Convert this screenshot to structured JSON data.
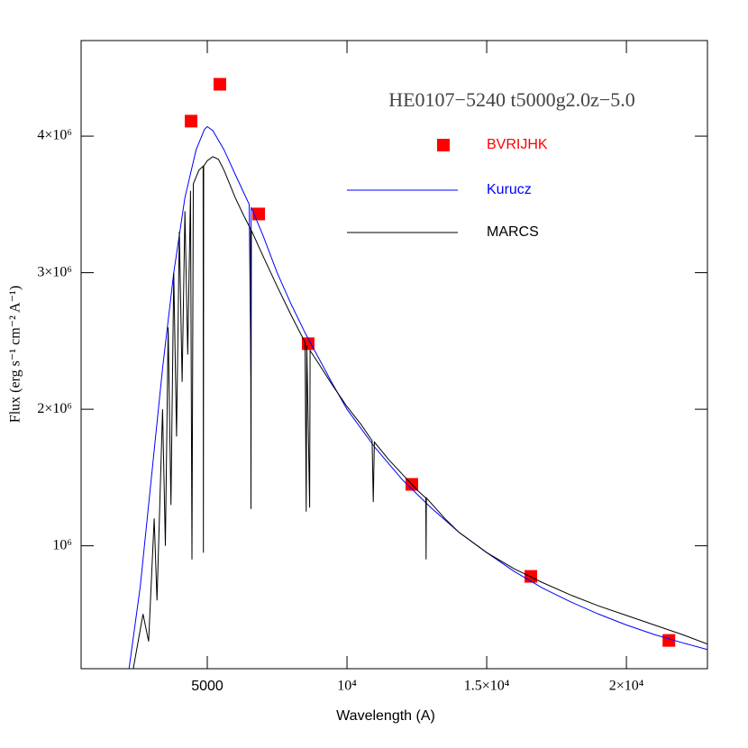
{
  "chart_data": {
    "type": "line",
    "annotation": "HE0107−5240  t5000g2.0z−5.0",
    "x_label": "Wavelength (A)",
    "y_label": "Flux (erg s⁻¹ cm⁻² A⁻¹)",
    "xlim": [
      484,
      22900
    ],
    "ylim": [
      100000,
      4700000
    ],
    "xticks": [
      5000,
      {
        "value": 10000,
        "label": "10⁴"
      },
      {
        "value": 15000,
        "label": "1.5×10⁴"
      },
      {
        "value": 20000,
        "label": "2×10⁴"
      }
    ],
    "yticks": [
      {
        "value": 1000000,
        "label": "10⁶"
      },
      {
        "value": 2000000,
        "label": "2×10⁶"
      },
      {
        "value": 3000000,
        "label": "3×10⁶"
      },
      {
        "value": 4000000,
        "label": "4×10⁶"
      }
    ],
    "series": [
      {
        "name": "BVRIJHK",
        "color": "#ff0000",
        "marker": "square",
        "x": [
          4420,
          5450,
          6840,
          8610,
          12320,
          16580,
          21520
        ],
        "values": [
          4110000,
          4380000,
          3430000,
          2480000,
          1450000,
          776000,
          307000
        ]
      },
      {
        "name": "Kurucz",
        "color": "#0000ff",
        "x": [
          2200,
          2600,
          3000,
          3400,
          3800,
          4200,
          4600,
          4900,
          5000,
          5200,
          5600,
          6000,
          6500,
          6560,
          6570,
          7000,
          7500,
          8000,
          8500,
          9000,
          9500,
          10000,
          11000,
          12000,
          13000,
          14000,
          15000,
          16000,
          17000,
          18000,
          19000,
          20000,
          21000,
          22000,
          22900
        ],
        "values": [
          100000,
          700000,
          1500000,
          2300000,
          3000000,
          3550000,
          3900000,
          4050000,
          4070000,
          4040000,
          3900000,
          3720000,
          3500000,
          2250000,
          3480000,
          3270000,
          3000000,
          2770000,
          2560000,
          2370000,
          2180000,
          2000000,
          1720000,
          1480000,
          1280000,
          1100000,
          950000,
          810000,
          690000,
          590000,
          500000,
          420000,
          350000,
          290000,
          240000
        ]
      },
      {
        "name": "MARCS",
        "color": "#000000",
        "x": [
          2350,
          2700,
          2900,
          3100,
          3200,
          3400,
          3500,
          3600,
          3700,
          3800,
          3900,
          4000,
          4100,
          4200,
          4300,
          4400,
          4450,
          4500,
          4700,
          4850,
          4861,
          4870,
          5000,
          5200,
          5400,
          5600,
          5800,
          6000,
          6300,
          6550,
          6563,
          6576,
          7000,
          7500,
          8000,
          8500,
          8542,
          8560,
          8662,
          8680,
          9000,
          9500,
          10000,
          10500,
          10900,
          10940,
          10980,
          11500,
          12000,
          12500,
          12820,
          12830,
          12840,
          13500,
          14000,
          15000,
          16000,
          17000,
          18000,
          19000,
          20000,
          21000,
          22000,
          22900
        ],
        "values": [
          100000,
          500000,
          300000,
          1200000,
          600000,
          2000000,
          1000000,
          2600000,
          1300000,
          3000000,
          1800000,
          3300000,
          2200000,
          3450000,
          2400000,
          3600000,
          900000,
          3650000,
          3750000,
          3780000,
          950000,
          3780000,
          3820000,
          3850000,
          3830000,
          3750000,
          3650000,
          3550000,
          3420000,
          3320000,
          1270000,
          3310000,
          3120000,
          2900000,
          2690000,
          2490000,
          1250000,
          2470000,
          1280000,
          2430000,
          2330000,
          2170000,
          2020000,
          1890000,
          1770000,
          1320000,
          1760000,
          1630000,
          1520000,
          1410000,
          1350000,
          900000,
          1350000,
          1200000,
          1100000,
          950000,
          830000,
          730000,
          640000,
          560000,
          490000,
          420000,
          350000,
          280000
        ]
      }
    ]
  }
}
